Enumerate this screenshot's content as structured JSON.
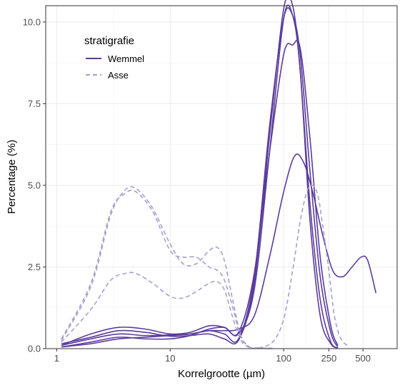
{
  "chart_data": {
    "type": "line",
    "title": "",
    "xlabel": "Korrelgrootte (µm)",
    "ylabel": "Percentage (%)",
    "x_scale": "log10",
    "xlim": [
      0.8,
      1000
    ],
    "ylim": [
      0,
      10.5
    ],
    "x_ticks": [
      1,
      10,
      100,
      250,
      500
    ],
    "x_tick_labels": [
      "1",
      "10",
      "100",
      "250",
      "500"
    ],
    "y_ticks": [
      0,
      2.5,
      5,
      7.5,
      10
    ],
    "y_tick_labels": [
      "0.0",
      "2.5",
      "5.0",
      "7.5",
      "10.0"
    ],
    "grid": true,
    "legend": {
      "title": "stratigrafie",
      "position": "top-left",
      "entries": [
        {
          "label": "Wemmel",
          "color": "#5b3c9c",
          "dash": "solid"
        },
        {
          "label": "Asse",
          "color": "#a89fcb",
          "dash": "dashed"
        }
      ]
    },
    "series": [
      {
        "group": "Wemmel",
        "x": [
          1.1,
          2,
          3.5,
          6,
          10,
          15,
          22,
          30,
          40,
          55,
          75,
          100,
          120,
          140,
          170,
          210,
          260,
          300
        ],
        "y": [
          0.15,
          0.35,
          0.55,
          0.5,
          0.38,
          0.4,
          0.45,
          0.3,
          0.25,
          2.0,
          6.5,
          10.4,
          10.5,
          8.5,
          4.5,
          1.5,
          0.2,
          0.02
        ]
      },
      {
        "group": "Wemmel",
        "x": [
          1.1,
          2,
          3.5,
          6,
          10,
          15,
          22,
          30,
          40,
          55,
          75,
          100,
          120,
          140,
          170,
          210,
          260,
          300
        ],
        "y": [
          0.1,
          0.3,
          0.45,
          0.4,
          0.42,
          0.45,
          0.55,
          0.45,
          0.3,
          2.2,
          6.8,
          10.1,
          10.2,
          9.0,
          5.5,
          2.2,
          0.5,
          0.05
        ]
      },
      {
        "group": "Wemmel",
        "x": [
          1.1,
          2,
          3.5,
          6,
          10,
          15,
          22,
          30,
          40,
          55,
          75,
          100,
          120,
          140,
          170,
          210,
          260,
          300
        ],
        "y": [
          0.05,
          0.2,
          0.35,
          0.3,
          0.3,
          0.4,
          0.6,
          0.65,
          0.5,
          2.3,
          6.0,
          9.0,
          9.3,
          9.2,
          6.5,
          2.8,
          0.7,
          0.1
        ]
      },
      {
        "group": "Wemmel",
        "x": [
          1.1,
          2,
          3.5,
          6,
          10,
          15,
          22,
          30,
          40,
          55,
          75,
          100,
          120,
          140,
          170,
          210,
          260,
          300
        ],
        "y": [
          0.1,
          0.45,
          0.65,
          0.6,
          0.45,
          0.5,
          0.7,
          0.65,
          0.45,
          1.8,
          6.0,
          10.1,
          10.2,
          8.5,
          4.0,
          1.0,
          0.15,
          0.02
        ]
      },
      {
        "group": "Wemmel",
        "x": [
          1.1,
          2,
          3.5,
          6,
          10,
          15,
          22,
          30,
          40,
          55,
          75,
          100,
          125,
          150,
          180,
          220,
          270,
          330,
          400,
          480,
          550,
          650
        ],
        "y": [
          0.05,
          0.15,
          0.3,
          0.35,
          0.4,
          0.45,
          0.55,
          0.55,
          0.6,
          1.0,
          2.8,
          4.8,
          5.9,
          5.7,
          4.8,
          3.5,
          2.4,
          2.2,
          2.5,
          2.8,
          2.7,
          1.7
        ]
      },
      {
        "group": "Asse",
        "x": [
          1.1,
          2,
          3,
          4,
          5,
          7,
          10,
          13,
          17,
          22,
          26,
          30,
          36,
          42,
          50,
          60,
          80
        ],
        "y": [
          0.3,
          2.0,
          4.2,
          4.75,
          4.8,
          4.2,
          3.0,
          2.8,
          2.8,
          2.5,
          2.4,
          2.1,
          1.2,
          0.35,
          0.05,
          0.02,
          0.01
        ]
      },
      {
        "group": "Asse",
        "x": [
          1.1,
          2,
          3,
          4,
          5,
          7,
          10,
          13,
          17,
          22,
          26,
          30,
          36,
          42,
          50,
          60,
          80
        ],
        "y": [
          0.25,
          1.9,
          4.1,
          4.85,
          4.9,
          4.3,
          3.2,
          2.6,
          2.6,
          3.0,
          3.1,
          2.7,
          1.4,
          0.4,
          0.05,
          0.02,
          0.01
        ]
      },
      {
        "group": "Asse",
        "x": [
          1.1,
          2,
          3,
          4,
          5,
          7,
          10,
          13,
          17,
          22,
          26,
          30,
          36,
          42,
          50,
          60,
          80
        ],
        "y": [
          0.2,
          1.2,
          2.1,
          2.3,
          2.3,
          2.0,
          1.6,
          1.55,
          1.75,
          2.0,
          2.05,
          1.8,
          0.9,
          0.25,
          0.03,
          0.01,
          0.0
        ]
      },
      {
        "group": "Asse",
        "x": [
          60,
          80,
          100,
          120,
          140,
          160,
          180,
          200,
          220,
          250,
          280,
          320,
          380
        ],
        "y": [
          0.02,
          0.2,
          0.9,
          2.4,
          3.9,
          4.8,
          5.0,
          4.7,
          3.8,
          2.4,
          1.0,
          0.3,
          0.05
        ]
      }
    ]
  }
}
